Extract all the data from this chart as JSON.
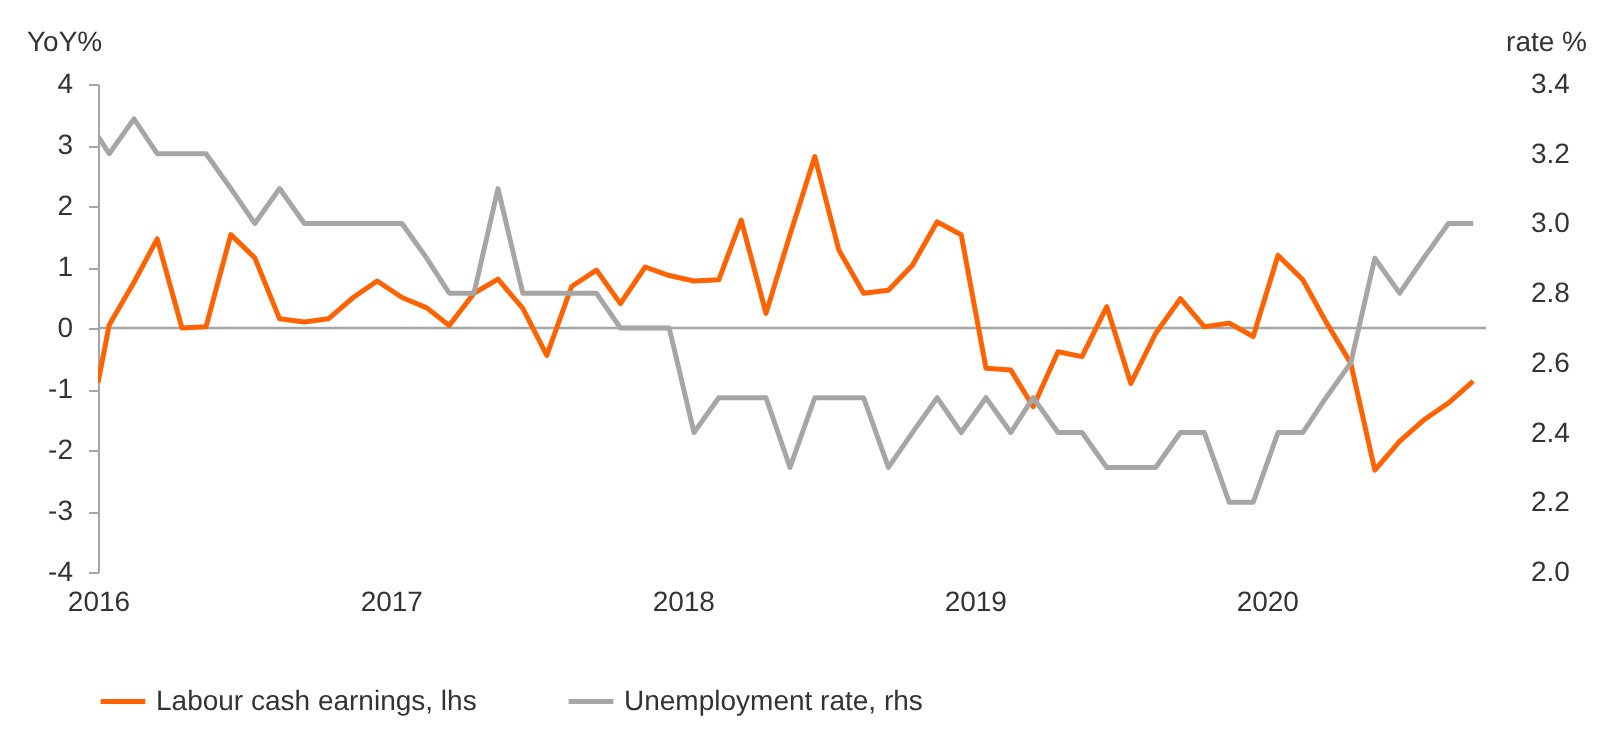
{
  "chart_data": {
    "type": "line",
    "ylabel": "YoY%",
    "y2label": "rate %",
    "x": [
      "2016-01-01",
      "2016-01-15",
      "2016-02-15",
      "2016-03-15",
      "2016-04-15",
      "2016-05-15",
      "2016-06-15",
      "2016-07-15",
      "2016-08-15",
      "2016-09-15",
      "2016-10-15",
      "2016-11-15",
      "2016-12-15",
      "2017-01-15",
      "2017-02-15",
      "2017-03-15",
      "2017-04-15",
      "2017-05-15",
      "2017-06-15",
      "2017-07-15",
      "2017-08-15",
      "2017-09-15",
      "2017-10-15",
      "2017-11-15",
      "2017-12-15",
      "2018-01-15",
      "2018-02-15",
      "2018-03-15",
      "2018-04-15",
      "2018-05-15",
      "2018-06-15",
      "2018-07-15",
      "2018-08-15",
      "2018-09-15",
      "2018-10-15",
      "2018-11-15",
      "2018-12-15",
      "2019-01-15",
      "2019-02-15",
      "2019-03-15",
      "2019-04-15",
      "2019-05-15",
      "2019-06-15",
      "2019-07-15",
      "2019-08-15",
      "2019-09-15",
      "2019-10-15",
      "2019-11-15",
      "2019-12-15",
      "2020-01-15",
      "2020-02-15",
      "2020-03-15",
      "2020-04-15",
      "2020-05-15",
      "2020-06-15",
      "2020-07-15",
      "2020-08-15",
      "2020-09-15"
    ],
    "series": [
      {
        "name": "Labour cash earnings, lhs",
        "color": "#ff6200",
        "values": [
          -0.9,
          0.05,
          0.75,
          1.46,
          0.0,
          0.02,
          1.53,
          1.15,
          0.15,
          0.1,
          0.15,
          0.5,
          0.77,
          0.5,
          0.33,
          0.04,
          0.57,
          0.8,
          0.32,
          -0.45,
          0.68,
          0.95,
          0.4,
          1.0,
          0.86,
          0.77,
          0.79,
          1.77,
          0.24,
          1.53,
          2.81,
          1.28,
          0.57,
          0.62,
          1.03,
          1.74,
          1.53,
          -0.66,
          -0.69,
          -1.29,
          -0.39,
          -0.47,
          0.35,
          -0.91,
          -0.09,
          0.48,
          0.02,
          0.08,
          -0.14,
          1.19,
          0.79,
          0.1,
          -0.58,
          -2.33,
          -1.86,
          -1.51,
          -1.23,
          -0.87
        ]
      },
      {
        "name": "Unemployment rate, rhs",
        "color": "#a6a6a6",
        "axis": "y2",
        "values": [
          3.25,
          3.2,
          3.3,
          3.2,
          3.2,
          3.2,
          3.1,
          3.0,
          3.1,
          3.0,
          3.0,
          3.0,
          3.0,
          3.0,
          2.9,
          2.8,
          2.8,
          3.1,
          2.8,
          2.8,
          2.8,
          2.8,
          2.7,
          2.7,
          2.7,
          2.4,
          2.5,
          2.5,
          2.5,
          2.3,
          2.5,
          2.5,
          2.5,
          2.3,
          2.4,
          2.5,
          2.4,
          2.5,
          2.4,
          2.5,
          2.4,
          2.4,
          2.3,
          2.3,
          2.3,
          2.4,
          2.4,
          2.2,
          2.2,
          2.4,
          2.4,
          2.5,
          2.6,
          2.9,
          2.8,
          2.9,
          3.0,
          3.0
        ]
      }
    ],
    "xlim": [
      "2016-01-01",
      "2020-10-01"
    ],
    "xticks": [
      {
        "value": "2016-01-01",
        "label": "2016"
      },
      {
        "value": "2017-01-01",
        "label": "2017"
      },
      {
        "value": "2018-01-01",
        "label": "2018"
      },
      {
        "value": "2019-01-01",
        "label": "2019"
      },
      {
        "value": "2020-01-01",
        "label": "2020"
      }
    ],
    "ylim": [
      -4,
      4
    ],
    "yticks": [
      -4,
      -3,
      -2,
      -1,
      0,
      1,
      2,
      3,
      4
    ],
    "y2lim": [
      2.0,
      3.4
    ],
    "y2ticks": [
      {
        "value": 2.0,
        "label": "2.0"
      },
      {
        "value": 2.2,
        "label": "2.2"
      },
      {
        "value": 2.4,
        "label": "2.4"
      },
      {
        "value": 2.6,
        "label": "2.6"
      },
      {
        "value": 2.8,
        "label": "2.8"
      },
      {
        "value": 3.0,
        "label": "3.0"
      },
      {
        "value": 3.2,
        "label": "3.2"
      },
      {
        "value": 3.4,
        "label": "3.4"
      }
    ],
    "ref_lines": [
      {
        "axis": "y",
        "value": 0,
        "color": "#a6a6a6"
      }
    ],
    "grid": false,
    "legend": "bottom",
    "line_style": "solid"
  }
}
